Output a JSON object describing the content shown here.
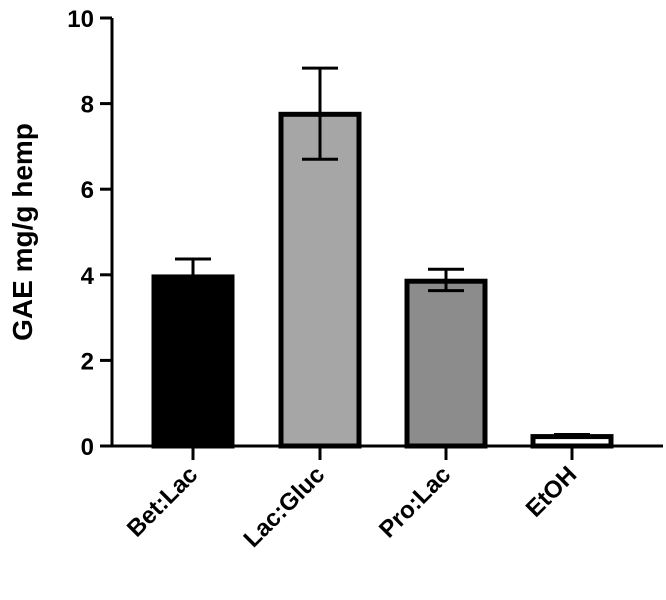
{
  "chart_data": {
    "type": "bar",
    "title": "",
    "xlabel": "",
    "ylabel": "GAE mg/g hemp",
    "ylim": [
      0,
      10
    ],
    "yticks": [
      0,
      2,
      4,
      6,
      8,
      10
    ],
    "ytick_labels": [
      "0",
      "2",
      "4",
      "6",
      "8",
      "10"
    ],
    "categories": [
      "Bet:Lac",
      "Lac:Gluc",
      "Pro:Lac",
      "EtOH"
    ],
    "values": [
      3.95,
      7.75,
      3.85,
      0.22
    ],
    "error_upper": [
      0.42,
      1.08,
      0.28,
      0.05
    ],
    "error_lower": [
      0.0,
      1.05,
      0.22,
      0.0
    ],
    "bar_colors": [
      "#000000",
      "#a6a6a6",
      "#8c8c8c",
      "#ffffff"
    ],
    "edge_color": "#000000",
    "grid": false,
    "legend": "none"
  }
}
